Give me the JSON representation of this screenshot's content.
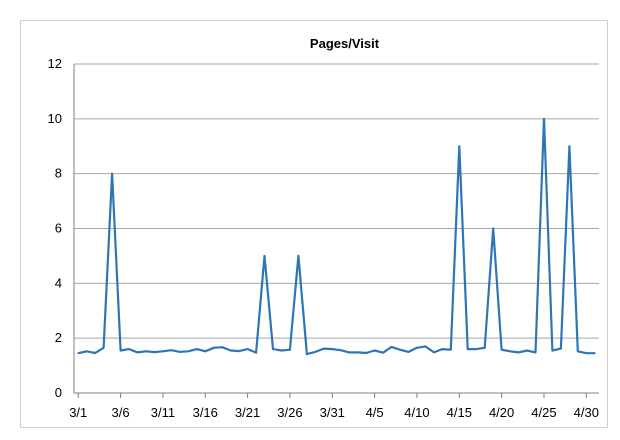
{
  "chart_data": {
    "type": "line",
    "title": "Pages/Visit",
    "xlabel": "",
    "ylabel": "",
    "ylim": [
      0,
      12
    ],
    "y_ticks": [
      0,
      2,
      4,
      6,
      8,
      10,
      12
    ],
    "grid": "horizontal",
    "legend": "none",
    "line_color": "#2e75b6",
    "x_tick_labels": [
      "3/1",
      "3/6",
      "3/11",
      "3/16",
      "3/21",
      "3/26",
      "3/31",
      "4/5",
      "4/10",
      "4/15",
      "4/20",
      "4/25",
      "4/30"
    ],
    "x": [
      "3/1",
      "3/2",
      "3/3",
      "3/4",
      "3/5",
      "3/6",
      "3/7",
      "3/8",
      "3/9",
      "3/10",
      "3/11",
      "3/12",
      "3/13",
      "3/14",
      "3/15",
      "3/16",
      "3/17",
      "3/18",
      "3/19",
      "3/20",
      "3/21",
      "3/22",
      "3/23",
      "3/24",
      "3/25",
      "3/26",
      "3/27",
      "3/28",
      "3/29",
      "3/30",
      "3/31",
      "4/1",
      "4/2",
      "4/3",
      "4/4",
      "4/5",
      "4/6",
      "4/7",
      "4/8",
      "4/9",
      "4/10",
      "4/11",
      "4/12",
      "4/13",
      "4/14",
      "4/15",
      "4/16",
      "4/17",
      "4/18",
      "4/19",
      "4/20",
      "4/21",
      "4/22",
      "4/23",
      "4/24",
      "4/25",
      "4/26",
      "4/27",
      "4/28",
      "4/29",
      "4/30",
      "5/1"
    ],
    "series": [
      {
        "values": [
          1.45,
          1.52,
          1.46,
          1.65,
          8.0,
          1.55,
          1.6,
          1.48,
          1.52,
          1.49,
          1.52,
          1.56,
          1.5,
          1.52,
          1.6,
          1.52,
          1.65,
          1.67,
          1.55,
          1.53,
          1.6,
          1.47,
          5.0,
          1.6,
          1.55,
          1.58,
          5.0,
          1.42,
          1.5,
          1.62,
          1.6,
          1.56,
          1.48,
          1.48,
          1.46,
          1.55,
          1.47,
          1.68,
          1.58,
          1.5,
          1.65,
          1.7,
          1.48,
          1.6,
          1.58,
          9.0,
          1.6,
          1.6,
          1.65,
          6.0,
          1.58,
          1.52,
          1.48,
          1.55,
          1.48,
          10.0,
          1.55,
          1.62,
          9.0,
          1.52,
          1.45,
          1.45
        ]
      }
    ]
  }
}
